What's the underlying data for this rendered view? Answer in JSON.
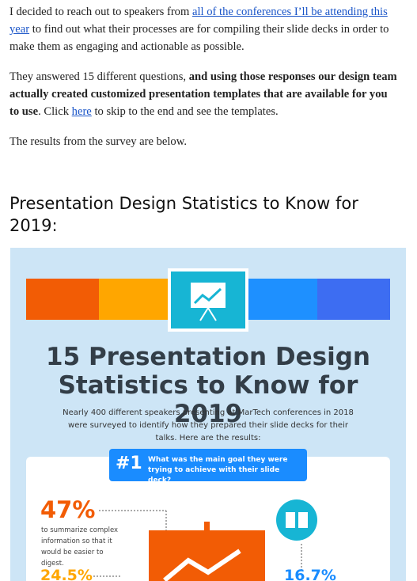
{
  "article": {
    "paragraphs": [
      {
        "text_1": "I decided to reach out to speakers from ",
        "link": "all of the conferences I’ll be attending this year",
        "text_2": " to find out what their processes are for compiling their slide decks in order to make them as engaging and actionable as possible."
      },
      {
        "text_1": "They answered 15 different questions, ",
        "bold": "and using those responses our design team actually created customized presentation templates that are available for you to use",
        "text_2": ". Click ",
        "link": "here",
        "text_3": " to skip to the end and see the templates."
      },
      {
        "text_1": "The results from the survey are below."
      }
    ],
    "heading": "Presentation Design Statistics to Know for 2019:"
  },
  "infographic": {
    "title": "15 Presentation Design Statistics to Know for 2019",
    "intro": "Nearly 400 different speakers presenting at MarTech conferences in 2018 were surveyed to identify how they prepared their slide decks for their talks. Here are the results:",
    "question_number": "#1",
    "question": "What was the main goal they were trying to achieve with their slide deck?",
    "stats": [
      {
        "value": "47%",
        "description": "to summarize complex information so that it would be easier to digest."
      },
      {
        "value": "24.5%"
      },
      {
        "value": "16.7%"
      }
    ]
  }
}
